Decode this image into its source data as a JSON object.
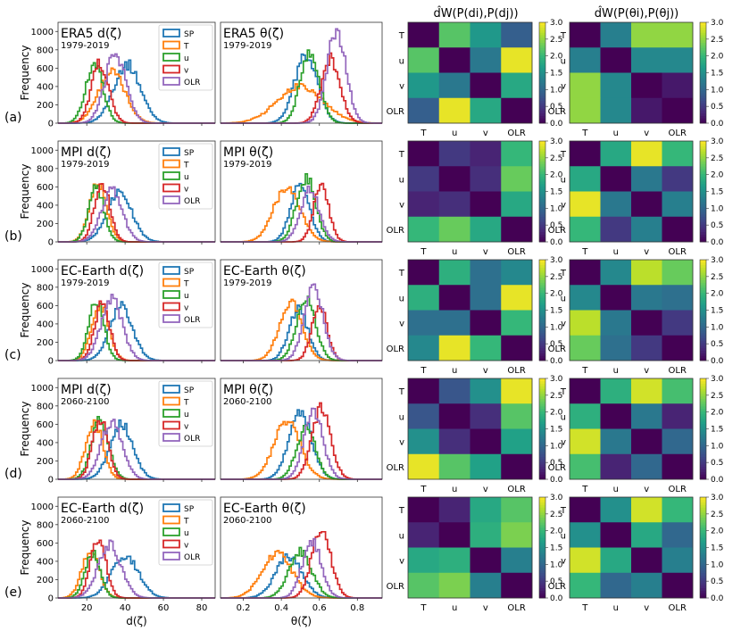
{
  "chart_data": {
    "type": "figure",
    "hist_axes": {
      "left_xticks": [
        20,
        40,
        60,
        80
      ],
      "left_xlim": [
        5,
        87
      ],
      "right_xticks": [
        0.2,
        0.4,
        0.6,
        0.8
      ],
      "right_xlim": [
        0.08,
        0.93
      ],
      "yticks": [
        0,
        200,
        400,
        600,
        800,
        1000
      ],
      "ylim": [
        0,
        1100
      ],
      "ylabel": "Frequency",
      "xlabel_left": "d(ζ)",
      "xlabel_right": "θ(ζ)"
    },
    "series_names": [
      "SP",
      "T",
      "u",
      "v",
      "OLR"
    ],
    "series_colors": [
      "#1f77b4",
      "#ff7f0e",
      "#2ca02c",
      "#d62728",
      "#9467bd"
    ],
    "rows": [
      {
        "label": "(a)",
        "model": "ERA5",
        "period": "1979-2019",
        "d_title": "ERA5 d(ζ)",
        "theta_title": "ERA5 θ(ζ)",
        "d_peaks": [
          {
            "mu": 41,
            "sd": 7,
            "peak": 640
          },
          {
            "mu": 33,
            "sd": 7,
            "peak": 560
          },
          {
            "mu": 24,
            "sd": 4.5,
            "peak": 650
          },
          {
            "mu": 27,
            "sd": 4.5,
            "peak": 650
          },
          {
            "mu": 35,
            "sd": 5.5,
            "peak": 760
          }
        ],
        "theta_peaks": [
          {
            "mu": 0.53,
            "sd": 0.06,
            "peak": 740
          },
          {
            "mu": 0.5,
            "sd": 0.12,
            "peak": 410
          },
          {
            "mu": 0.55,
            "sd": 0.05,
            "peak": 760
          },
          {
            "mu": 0.66,
            "sd": 0.05,
            "peak": 700
          },
          {
            "mu": 0.69,
            "sd": 0.05,
            "peak": 1000
          }
        ],
        "wd_d": [
          [
            0,
            2.2,
            1.6,
            0.9
          ],
          [
            2.2,
            0,
            1.2,
            2.9
          ],
          [
            1.6,
            1.2,
            0,
            1.8
          ],
          [
            0.9,
            2.9,
            1.8,
            0
          ]
        ],
        "wd_theta": [
          [
            0,
            1.3,
            2.5,
            2.5
          ],
          [
            1.3,
            0,
            1.4,
            1.4
          ],
          [
            2.5,
            1.4,
            0,
            0.2
          ],
          [
            2.5,
            1.4,
            0.2,
            0
          ]
        ]
      },
      {
        "label": "(b)",
        "model": "MPI",
        "period": "1979-2019",
        "d_title": "MPI d(ζ)",
        "theta_title": "MPI θ(ζ)",
        "d_peaks": [
          {
            "mu": 37,
            "sd": 6.5,
            "peak": 540
          },
          {
            "mu": 26,
            "sd": 4.5,
            "peak": 640
          },
          {
            "mu": 25,
            "sd": 4,
            "peak": 590
          },
          {
            "mu": 28,
            "sd": 4,
            "peak": 640
          },
          {
            "mu": 33,
            "sd": 5.5,
            "peak": 560
          }
        ],
        "theta_peaks": [
          {
            "mu": 0.5,
            "sd": 0.05,
            "peak": 620
          },
          {
            "mu": 0.43,
            "sd": 0.07,
            "peak": 600
          },
          {
            "mu": 0.53,
            "sd": 0.05,
            "peak": 700
          },
          {
            "mu": 0.61,
            "sd": 0.04,
            "peak": 600
          },
          {
            "mu": 0.55,
            "sd": 0.05,
            "peak": 570
          }
        ],
        "wd_d": [
          [
            0,
            0.5,
            0.3,
            2.0
          ],
          [
            0.5,
            0,
            0.4,
            2.3
          ],
          [
            0.3,
            0.4,
            0,
            1.8
          ],
          [
            2.0,
            2.3,
            1.8,
            0
          ]
        ],
        "wd_theta": [
          [
            0,
            1.8,
            2.9,
            2.0
          ],
          [
            1.8,
            0,
            1.2,
            0.5
          ],
          [
            2.9,
            1.2,
            0,
            1.3
          ],
          [
            2.0,
            0.5,
            1.3,
            0
          ]
        ]
      },
      {
        "label": "(c)",
        "model": "EC-Earth",
        "period": "1979-2019",
        "d_title": "EC-Earth d(ζ)",
        "theta_title": "EC-Earth θ(ζ)",
        "d_peaks": [
          {
            "mu": 38,
            "sd": 6,
            "peak": 590
          },
          {
            "mu": 27,
            "sd": 4.5,
            "peak": 600
          },
          {
            "mu": 25,
            "sd": 4,
            "peak": 650
          },
          {
            "mu": 28,
            "sd": 4,
            "peak": 620
          },
          {
            "mu": 33,
            "sd": 5.5,
            "peak": 680
          }
        ],
        "theta_peaks": [
          {
            "mu": 0.49,
            "sd": 0.05,
            "peak": 560
          },
          {
            "mu": 0.45,
            "sd": 0.06,
            "peak": 640
          },
          {
            "mu": 0.53,
            "sd": 0.05,
            "peak": 680
          },
          {
            "mu": 0.6,
            "sd": 0.04,
            "peak": 600
          },
          {
            "mu": 0.57,
            "sd": 0.05,
            "peak": 800
          }
        ],
        "wd_d": [
          [
            0,
            1.9,
            1.1,
            1.4
          ],
          [
            1.9,
            0,
            1.1,
            2.9
          ],
          [
            1.1,
            1.1,
            0,
            2.0
          ],
          [
            1.4,
            2.9,
            2.0,
            0
          ]
        ],
        "wd_theta": [
          [
            0,
            1.4,
            2.7,
            2.3
          ],
          [
            1.4,
            0,
            1.2,
            1.1
          ],
          [
            2.7,
            1.2,
            0,
            0.5
          ],
          [
            2.3,
            1.1,
            0.5,
            0
          ]
        ]
      },
      {
        "label": "(d)",
        "model": "MPI",
        "period": "2060-2100",
        "d_title": "MPI d(ζ)",
        "theta_title": "MPI θ(ζ)",
        "d_peaks": [
          {
            "mu": 38,
            "sd": 6,
            "peak": 600
          },
          {
            "mu": 24,
            "sd": 4.5,
            "peak": 620
          },
          {
            "mu": 27,
            "sd": 4.5,
            "peak": 640
          },
          {
            "mu": 27,
            "sd": 4,
            "peak": 660
          },
          {
            "mu": 33,
            "sd": 5.5,
            "peak": 620
          }
        ],
        "theta_peaks": [
          {
            "mu": 0.5,
            "sd": 0.06,
            "peak": 720
          },
          {
            "mu": 0.43,
            "sd": 0.07,
            "peak": 620
          },
          {
            "mu": 0.53,
            "sd": 0.05,
            "peak": 560
          },
          {
            "mu": 0.61,
            "sd": 0.05,
            "peak": 760
          },
          {
            "mu": 0.57,
            "sd": 0.05,
            "peak": 720
          }
        ],
        "wd_d": [
          [
            0,
            0.8,
            1.5,
            2.9
          ],
          [
            0.8,
            0,
            0.4,
            2.2
          ],
          [
            1.5,
            0.4,
            0,
            1.7
          ],
          [
            2.9,
            2.2,
            1.7,
            0
          ]
        ],
        "wd_theta": [
          [
            0,
            1.9,
            2.8,
            2.1
          ],
          [
            1.9,
            0,
            1.2,
            0.3
          ],
          [
            2.8,
            1.2,
            0,
            1.0
          ],
          [
            2.1,
            0.3,
            1.0,
            0
          ]
        ]
      },
      {
        "label": "(e)",
        "model": "EC-Earth",
        "period": "2060-2100",
        "d_title": "EC-Earth d(ζ)",
        "theta_title": "EC-Earth θ(ζ)",
        "d_peaks": [
          {
            "mu": 40,
            "sd": 7,
            "peak": 460
          },
          {
            "mu": 22,
            "sd": 4.5,
            "peak": 520
          },
          {
            "mu": 23,
            "sd": 4,
            "peak": 490
          },
          {
            "mu": 26,
            "sd": 4,
            "peak": 640
          },
          {
            "mu": 32,
            "sd": 6,
            "peak": 580
          }
        ],
        "theta_peaks": [
          {
            "mu": 0.44,
            "sd": 0.07,
            "peak": 450
          },
          {
            "mu": 0.38,
            "sd": 0.08,
            "peak": 480
          },
          {
            "mu": 0.5,
            "sd": 0.06,
            "peak": 510
          },
          {
            "mu": 0.61,
            "sd": 0.05,
            "peak": 760
          },
          {
            "mu": 0.56,
            "sd": 0.05,
            "peak": 620
          }
        ],
        "wd_d": [
          [
            0,
            0.3,
            1.8,
            2.2
          ],
          [
            0.3,
            0,
            1.9,
            2.4
          ],
          [
            1.8,
            1.9,
            0,
            1.3
          ],
          [
            2.2,
            2.4,
            1.3,
            0
          ]
        ],
        "wd_theta": [
          [
            0,
            1.5,
            2.8,
            2.0
          ],
          [
            1.5,
            0,
            1.8,
            1.0
          ],
          [
            2.8,
            1.8,
            0,
            1.3
          ],
          [
            2.0,
            1.0,
            1.3,
            0
          ]
        ]
      }
    ],
    "heatmap": {
      "title_d": "d̂W(P(di),P(dj))",
      "title_theta": "d̂W(P(θi),P(θj))",
      "labels": [
        "T",
        "u",
        "v",
        "OLR"
      ],
      "cbar_ticks": [
        0.0,
        0.5,
        1.0,
        1.5,
        2.0,
        2.5,
        3.0
      ],
      "vmin": 0,
      "vmax": 3,
      "colormap": "viridis"
    }
  }
}
